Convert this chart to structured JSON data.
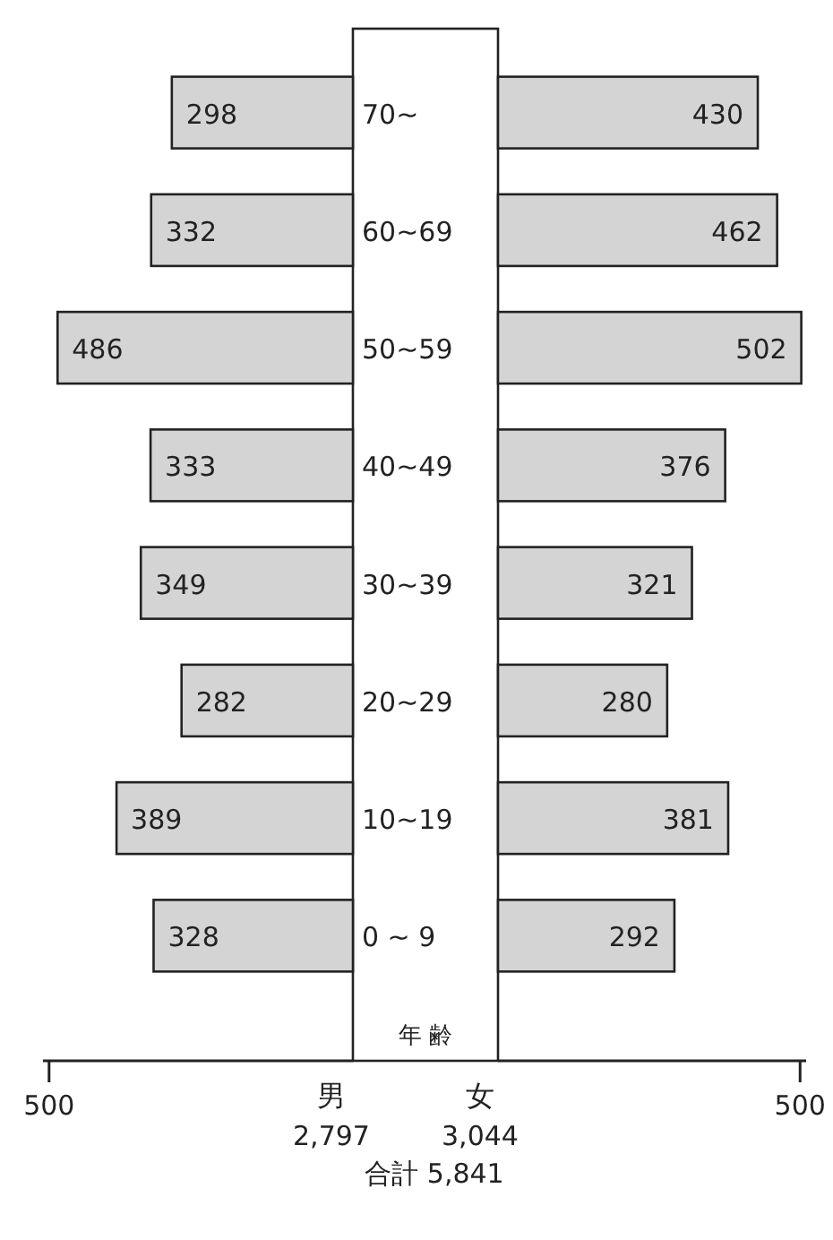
{
  "chart_data": [
    {
      "type": "bar",
      "orientation": "horizontal",
      "xlabel": "男",
      "ylabel": "年 齢",
      "categories": [
        "70~",
        "60~69",
        "50~59",
        "40~49",
        "30~39",
        "20~29",
        "10~19",
        "0 ~ 9"
      ],
      "xlim": [
        510,
        0
      ],
      "xticks": [
        500
      ],
      "data_labels": true,
      "annotations": [
        "2,797"
      ],
      "series": [
        {
          "color": "#d4d4d4",
          "values": [
            298,
            332,
            486,
            333,
            349,
            282,
            389,
            328
          ]
        }
      ]
    },
    {
      "type": "bar",
      "orientation": "horizontal",
      "xlabel": "女",
      "categories": [
        null,
        null,
        null,
        null,
        null,
        null,
        null,
        null
      ],
      "xlim": [
        0,
        510
      ],
      "xticks": [
        500
      ],
      "data_labels": true,
      "annotations": [
        "3,044",
        "合計 5,841"
      ],
      "series": [
        {
          "color": "#d4d4d4",
          "values": [
            430,
            462,
            502,
            376,
            321,
            280,
            381,
            292
          ]
        }
      ]
    }
  ]
}
